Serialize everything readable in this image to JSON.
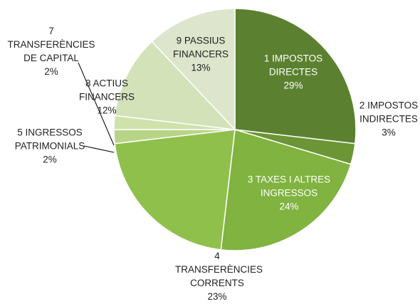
{
  "chart_data": {
    "type": "pie",
    "categories": [
      "1 IMPOSTOS DIRECTES",
      "2 IMPOSTOS INDIRECTES",
      "3 TAXES I ALTRES INGRESSOS",
      "4 TRANSFERÈNCIES CORRENTS",
      "5 INGRESSOS PATRIMONIALS",
      "7 TRANSFERÈNCIES DE CAPITAL",
      "8 ACTIUS FINANCERS",
      "9 PASSIUS FINANCERS"
    ],
    "values": [
      29,
      3,
      24,
      23,
      2,
      2,
      12,
      13
    ],
    "value_labels": [
      "29%",
      "3%",
      "24%",
      "23%",
      "2%",
      "2%",
      "12%",
      "13%"
    ],
    "colors": [
      "#5b8130",
      "#6c9536",
      "#80b33f",
      "#90c04c",
      "#b7d587",
      "#cfe2ab",
      "#d3e2b9",
      "#dde5cc"
    ]
  }
}
